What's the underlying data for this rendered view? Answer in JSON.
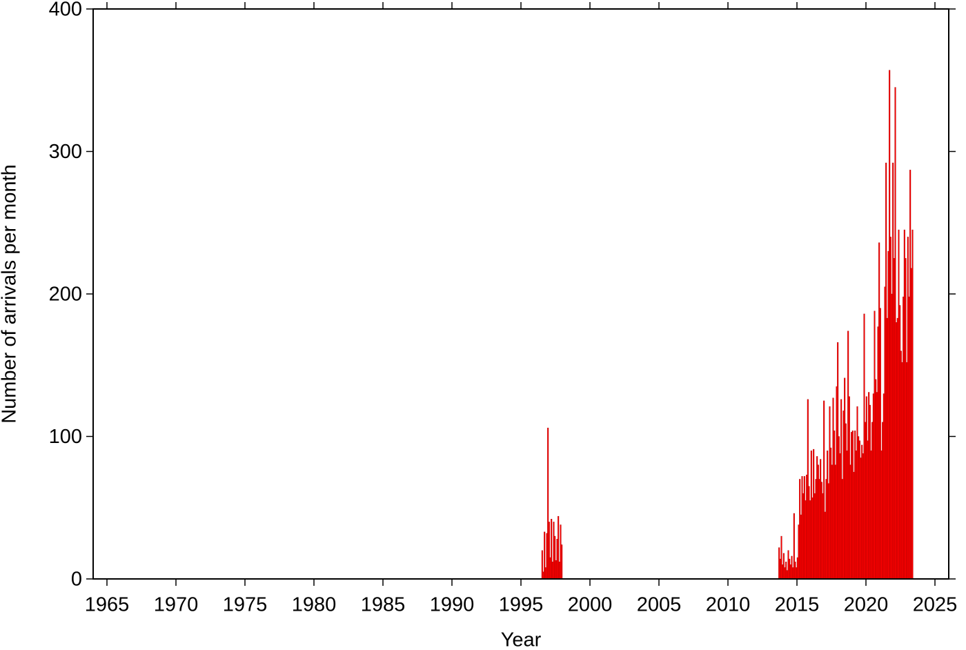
{
  "chart_data": {
    "type": "histogram",
    "x_label": "Year",
    "y_label": "Number of arrivals per month",
    "color": "#ff0000",
    "edge_color": "#a00000",
    "xlim": [
      1964,
      2026
    ],
    "ylim": [
      0,
      400
    ],
    "xticks": [
      1965,
      1970,
      1975,
      1980,
      1985,
      1990,
      1995,
      2000,
      2005,
      2010,
      2015,
      2020,
      2025
    ],
    "yticks": [
      0,
      100,
      200,
      300,
      400
    ],
    "bins": [
      1996.5,
      1996.583,
      1996.667,
      1996.75,
      1996.833,
      1996.917,
      1997,
      1997.083,
      1997.167,
      1997.25,
      1997.333,
      1997.417,
      1997.5,
      1997.583,
      1997.667,
      1997.75,
      1997.833,
      1997.917,
      1998,
      2013.667,
      2013.75,
      2013.833,
      2013.917,
      2014,
      2014.083,
      2014.167,
      2014.25,
      2014.333,
      2014.417,
      2014.5,
      2014.583,
      2014.667,
      2014.75,
      2014.833,
      2014.917,
      2015,
      2015.083,
      2015.167,
      2015.25,
      2015.333,
      2015.417,
      2015.5,
      2015.583,
      2015.667,
      2015.75,
      2015.833,
      2015.917,
      2016,
      2016.083,
      2016.167,
      2016.25,
      2016.333,
      2016.417,
      2016.5,
      2016.583,
      2016.667,
      2016.75,
      2016.833,
      2016.917,
      2017,
      2017.083,
      2017.167,
      2017.25,
      2017.333,
      2017.417,
      2017.5,
      2017.583,
      2017.667,
      2017.75,
      2017.833,
      2017.917,
      2018,
      2018.083,
      2018.167,
      2018.25,
      2018.333,
      2018.417,
      2018.5,
      2018.583,
      2018.667,
      2018.75,
      2018.833,
      2018.917,
      2019,
      2019.083,
      2019.167,
      2019.25,
      2019.333,
      2019.417,
      2019.5,
      2019.583,
      2019.667,
      2019.75,
      2019.833,
      2019.917,
      2020,
      2020.083,
      2020.167,
      2020.25,
      2020.333,
      2020.417,
      2020.5,
      2020.583,
      2020.667,
      2020.75,
      2020.833,
      2020.917,
      2021,
      2021.083,
      2021.167,
      2021.25,
      2021.333,
      2021.417,
      2021.5,
      2021.583,
      2021.667,
      2021.75,
      2021.833,
      2021.917,
      2022,
      2022.083,
      2022.167,
      2022.25,
      2022.333,
      2022.417,
      2022.5,
      2022.583,
      2022.667,
      2022.75,
      2022.833,
      2022.917,
      2023,
      2023.083,
      2023.167,
      2023.25,
      2023.333,
      2023.417
    ],
    "values": [
      20,
      5,
      33,
      8,
      32,
      106,
      40,
      15,
      42,
      12,
      40,
      30,
      13,
      28,
      44,
      12,
      38,
      24,
      0,
      22,
      14,
      30,
      10,
      18,
      8,
      12,
      6,
      20,
      14,
      10,
      16,
      8,
      46,
      12,
      8,
      15,
      38,
      70,
      45,
      72,
      60,
      72,
      55,
      73,
      126,
      65,
      55,
      90,
      57,
      91,
      60,
      70,
      86,
      80,
      70,
      84,
      68,
      60,
      125,
      47,
      70,
      90,
      67,
      121,
      92,
      80,
      127,
      104,
      80,
      135,
      166,
      100,
      88,
      126,
      70,
      118,
      141,
      109,
      90,
      174,
      128,
      80,
      103,
      104,
      75,
      104,
      90,
      121,
      100,
      97,
      85,
      94,
      88,
      186,
      110,
      128,
      97,
      131,
      122,
      90,
      110,
      130,
      188,
      140,
      131,
      177,
      236,
      190,
      90,
      110,
      130,
      205,
      292,
      183,
      230,
      357,
      240,
      200,
      292,
      225,
      345,
      180,
      183,
      245,
      192,
      160,
      152,
      198,
      245,
      225,
      152,
      240,
      198,
      287,
      218,
      245
    ]
  }
}
